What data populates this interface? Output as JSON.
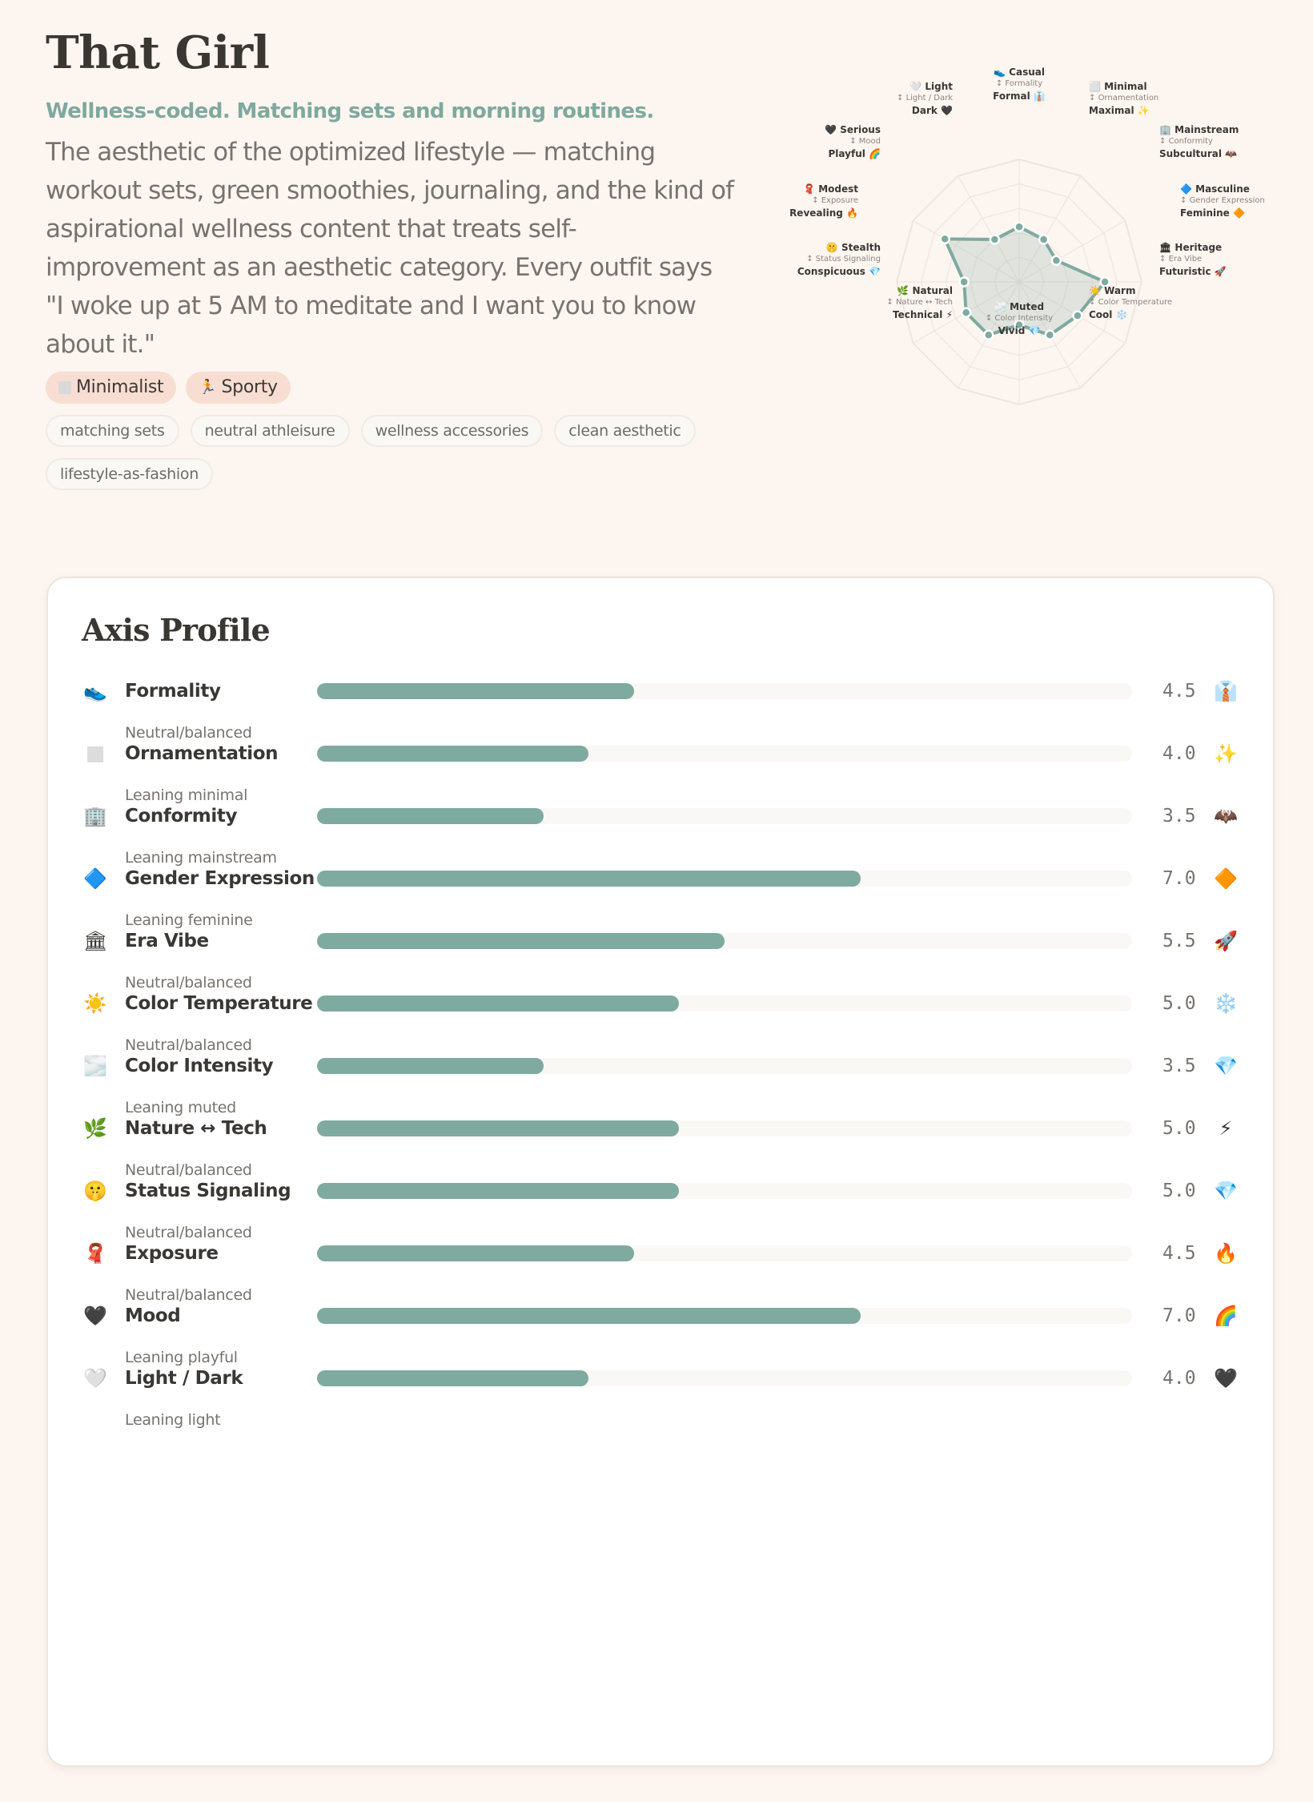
{
  "header": {
    "title": "That Girl",
    "tagline": "Wellness-coded. Matching sets and morning routines.",
    "description": "The aesthetic of the optimized lifestyle — matching workout sets, green smoothies, journaling, and the kind of aspirational wellness content that treats self-improvement as an aesthetic category. Every outfit says \"I woke up at 5 AM to meditate and I want you to know about it.\"",
    "parent_styles": [
      {
        "icon": "white-square",
        "label": "Minimalist"
      },
      {
        "icon": "🏃",
        "label": "Sporty"
      }
    ],
    "tags": [
      "matching sets",
      "neutral athleisure",
      "wellness accessories",
      "clean aesthetic",
      "lifestyle-as-fashion"
    ]
  },
  "colors": {
    "background": "#fdf5f0",
    "accent": "#7eaaa0",
    "pill_bg": "#f8ddd3",
    "chip_bg": "#f9f8f4",
    "card_bg": "#ffffff"
  },
  "chart_data": {
    "type": "radar",
    "range": [
      0,
      10
    ],
    "rings": 5,
    "axes": [
      {
        "axis": "Formality",
        "low": "Casual",
        "low_icon": "👟",
        "high": "Formal",
        "high_icon": "👔",
        "value": 4.5
      },
      {
        "axis": "Ornamentation",
        "low": "Minimal",
        "low_icon": "⬜",
        "high": "Maximal",
        "high_icon": "✨",
        "value": 4.0
      },
      {
        "axis": "Conformity",
        "low": "Mainstream",
        "low_icon": "🏢",
        "high": "Subcultural",
        "high_icon": "🦇",
        "value": 3.5
      },
      {
        "axis": "Gender Expression",
        "low": "Masculine",
        "low_icon": "🔷",
        "high": "Feminine",
        "high_icon": "🔶",
        "value": 7.0
      },
      {
        "axis": "Era Vibe",
        "low": "Heritage",
        "low_icon": "🏛",
        "high": "Futuristic",
        "high_icon": "🚀",
        "value": 5.5
      },
      {
        "axis": "Color Temperature",
        "low": "Warm",
        "low_icon": "☀️",
        "high": "Cool",
        "high_icon": "❄️",
        "value": 5.0
      },
      {
        "axis": "Color Intensity",
        "low": "Muted",
        "low_icon": "🌫️",
        "high": "Vivid",
        "high_icon": "💎",
        "value": 3.5
      },
      {
        "axis": "Nature ↔ Tech",
        "low": "Natural",
        "low_icon": "🌿",
        "high": "Technical",
        "high_icon": "⚡",
        "value": 5.0
      },
      {
        "axis": "Status Signaling",
        "low": "Stealth",
        "low_icon": "🤫",
        "high": "Conspicuous",
        "high_icon": "💎",
        "value": 5.0
      },
      {
        "axis": "Exposure",
        "low": "Modest",
        "low_icon": "🧣",
        "high": "Revealing",
        "high_icon": "🔥",
        "value": 4.5
      },
      {
        "axis": "Mood",
        "low": "Serious",
        "low_icon": "🖤",
        "high": "Playful",
        "high_icon": "🌈",
        "value": 7.0
      },
      {
        "axis": "Light / Dark",
        "low": "Light",
        "low_icon": "🤍",
        "high": "Dark",
        "high_icon": "🖤",
        "value": 4.0
      }
    ]
  },
  "profile": {
    "title": "Axis Profile",
    "scale_min": 1,
    "scale_max": 10,
    "rows": [
      {
        "icon": "👟",
        "name": "Formality",
        "lean": "Neutral/balanced",
        "value": "4.5",
        "end_icon": "👔"
      },
      {
        "icon": "⬜",
        "name": "Ornamentation",
        "lean": "Leaning minimal",
        "value": "4.0",
        "end_icon": "✨"
      },
      {
        "icon": "🏢",
        "name": "Conformity",
        "lean": "Leaning mainstream",
        "value": "3.5",
        "end_icon": "🦇"
      },
      {
        "icon": "🔷",
        "name": "Gender Expression",
        "lean": "Leaning feminine",
        "value": "7.0",
        "end_icon": "🔶"
      },
      {
        "icon": "🏛",
        "name": "Era Vibe",
        "lean": "Neutral/balanced",
        "value": "5.5",
        "end_icon": "🚀"
      },
      {
        "icon": "☀️",
        "name": "Color Temperature",
        "lean": "Neutral/balanced",
        "value": "5.0",
        "end_icon": "❄️"
      },
      {
        "icon": "🌫️",
        "name": "Color Intensity",
        "lean": "Leaning muted",
        "value": "3.5",
        "end_icon": "💎"
      },
      {
        "icon": "🌿",
        "name": "Nature ↔ Tech",
        "lean": "Neutral/balanced",
        "value": "5.0",
        "end_icon": "⚡"
      },
      {
        "icon": "🤫",
        "name": "Status Signaling",
        "lean": "Neutral/balanced",
        "value": "5.0",
        "end_icon": "💎"
      },
      {
        "icon": "🧣",
        "name": "Exposure",
        "lean": "Neutral/balanced",
        "value": "4.5",
        "end_icon": "🔥"
      },
      {
        "icon": "🖤",
        "name": "Mood",
        "lean": "Leaning playful",
        "value": "7.0",
        "end_icon": "🌈"
      },
      {
        "icon": "🤍",
        "name": "Light / Dark",
        "lean": "Leaning light",
        "value": "4.0",
        "end_icon": "🖤"
      }
    ]
  }
}
